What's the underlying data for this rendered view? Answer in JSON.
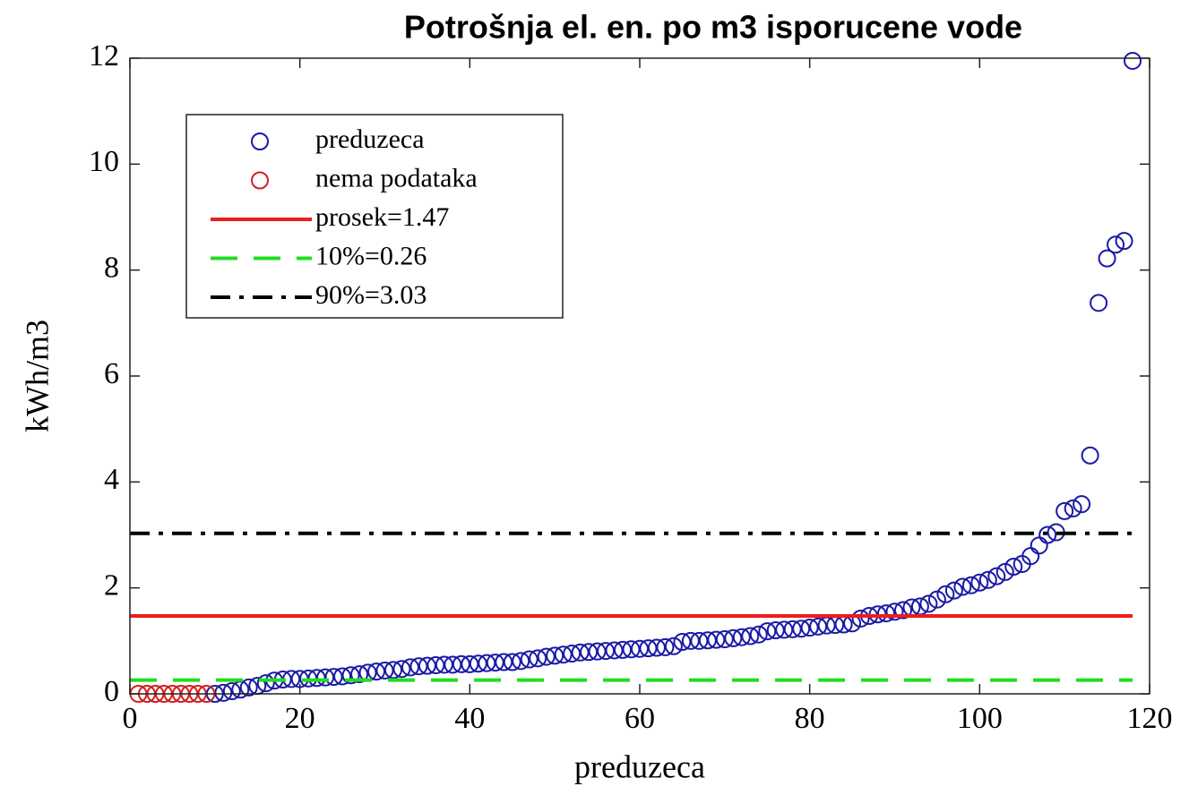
{
  "chart_data": {
    "type": "scatter",
    "title": "Potrošnja el. en. po m3 isporucene vode",
    "xlabel": "preduzeca",
    "ylabel": "kWh/m3",
    "xlim": [
      0,
      120
    ],
    "ylim": [
      0,
      12
    ],
    "xticks": [
      0,
      20,
      40,
      60,
      80,
      100,
      120
    ],
    "yticks": [
      0,
      2,
      4,
      6,
      8,
      10,
      12
    ],
    "legend": "upper left",
    "series": [
      {
        "name": "preduzeca",
        "color": "#1a1aa6",
        "style": "circle",
        "x": [
          10,
          11,
          12,
          13,
          14,
          15,
          16,
          17,
          18,
          19,
          20,
          21,
          22,
          23,
          24,
          25,
          26,
          27,
          28,
          29,
          30,
          31,
          32,
          33,
          34,
          35,
          36,
          37,
          38,
          39,
          40,
          41,
          42,
          43,
          44,
          45,
          46,
          47,
          48,
          49,
          50,
          51,
          52,
          53,
          54,
          55,
          56,
          57,
          58,
          59,
          60,
          61,
          62,
          63,
          64,
          65,
          66,
          67,
          68,
          69,
          70,
          71,
          72,
          73,
          74,
          75,
          76,
          77,
          78,
          79,
          80,
          81,
          82,
          83,
          84,
          85,
          86,
          87,
          88,
          89,
          90,
          91,
          92,
          93,
          94,
          95,
          96,
          97,
          98,
          99,
          100,
          101,
          102,
          103,
          104,
          105,
          106,
          107,
          108,
          109,
          110,
          111,
          112,
          113,
          114,
          115,
          116,
          117,
          118
        ],
        "values": [
          0,
          0.02,
          0.05,
          0.08,
          0.12,
          0.15,
          0.2,
          0.25,
          0.27,
          0.28,
          0.28,
          0.29,
          0.3,
          0.31,
          0.32,
          0.33,
          0.35,
          0.37,
          0.4,
          0.42,
          0.44,
          0.45,
          0.47,
          0.5,
          0.52,
          0.53,
          0.54,
          0.55,
          0.55,
          0.56,
          0.56,
          0.57,
          0.58,
          0.59,
          0.6,
          0.6,
          0.62,
          0.65,
          0.67,
          0.7,
          0.72,
          0.74,
          0.76,
          0.78,
          0.79,
          0.8,
          0.81,
          0.82,
          0.83,
          0.84,
          0.85,
          0.86,
          0.87,
          0.88,
          0.9,
          0.98,
          1.0,
          1.0,
          1.01,
          1.02,
          1.03,
          1.05,
          1.07,
          1.09,
          1.12,
          1.18,
          1.2,
          1.21,
          1.22,
          1.23,
          1.25,
          1.27,
          1.29,
          1.3,
          1.31,
          1.33,
          1.42,
          1.47,
          1.5,
          1.52,
          1.55,
          1.58,
          1.63,
          1.65,
          1.7,
          1.78,
          1.88,
          1.95,
          2.02,
          2.05,
          2.1,
          2.15,
          2.22,
          2.3,
          2.4,
          2.45,
          2.6,
          2.8,
          3.0,
          3.05,
          3.45,
          3.5,
          3.58,
          4.5,
          7.38,
          8.22,
          8.48,
          8.55,
          11.95
        ]
      },
      {
        "name": "nema podataka",
        "color": "#d42020",
        "style": "circle",
        "x": [
          1,
          2,
          3,
          4,
          5,
          6,
          7,
          8,
          9
        ],
        "values": [
          0,
          0,
          0,
          0,
          0,
          0,
          0,
          0,
          0
        ]
      },
      {
        "name": "prosek=1.47",
        "color": "#ee1c1c",
        "style": "solid",
        "x": [
          0,
          118
        ],
        "values": [
          1.47,
          1.47
        ]
      },
      {
        "name": "10%=0.26",
        "color": "#22dd22",
        "style": "dashed",
        "x": [
          0,
          118
        ],
        "values": [
          0.26,
          0.26
        ]
      },
      {
        "name": "90%=3.03",
        "color": "#000000",
        "style": "dashdot",
        "x": [
          0,
          118
        ],
        "values": [
          3.03,
          3.03
        ]
      }
    ]
  }
}
